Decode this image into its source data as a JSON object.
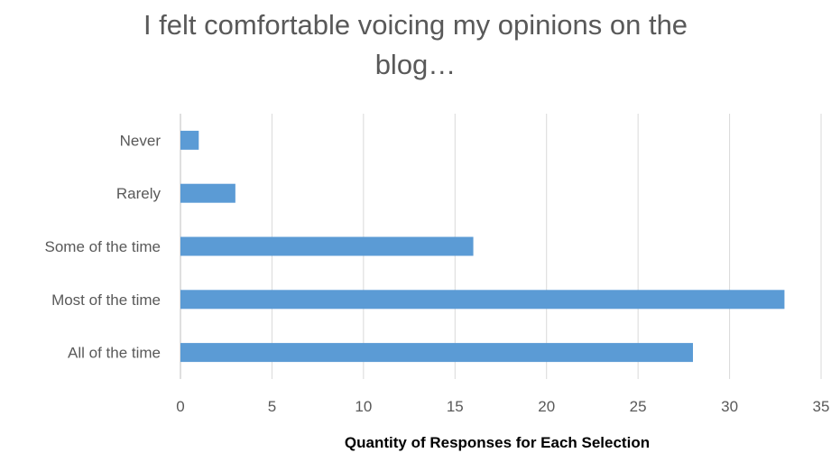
{
  "chart_data": {
    "type": "bar",
    "orientation": "horizontal",
    "title": "I felt comfortable voicing my opinions on the blog…",
    "xlabel": "Quantity of Responses for Each Selection",
    "ylabel": "",
    "categories": [
      "Never",
      "Rarely",
      "Some of the time",
      "Most of the time",
      "All of the time"
    ],
    "values": [
      1,
      3,
      16,
      33,
      28
    ],
    "xlim": [
      0,
      35
    ],
    "xticks": [
      0,
      5,
      10,
      15,
      20,
      25,
      30,
      35
    ],
    "grid": "vertical",
    "legend": "none",
    "bar_color": "#5B9BD5"
  }
}
